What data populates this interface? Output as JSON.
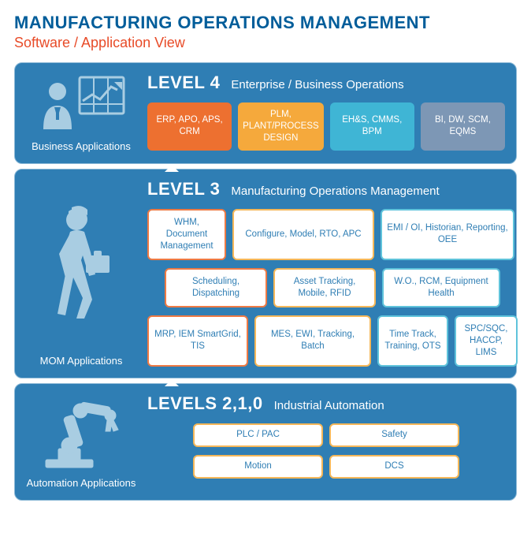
{
  "title": {
    "main": "MANUFACTURING OPERATIONS MANAGEMENT",
    "sub": "Software / Application View"
  },
  "colors": {
    "panel_bg": "#2f7eb4",
    "panel_border": "#8bb8d6",
    "title_main": "#005d9a",
    "title_sub": "#e84b28",
    "icon": "#a9cde2",
    "orange_solid": "#ed7030",
    "amber_solid": "#f5a93c",
    "cyan_solid": "#3fb5d5",
    "slate_solid": "#7d97b5",
    "outline_orange": "#ee7a44",
    "outline_amber": "#f5b759",
    "outline_cyan": "#5fc3db"
  },
  "panels": [
    {
      "side_label": "Business Applications",
      "level_name": "LEVEL 4",
      "level_desc": "Enterprise / Business Operations",
      "rows": [
        {
          "type": "solid",
          "boxes": [
            {
              "text": "ERP, APO, APS, CRM",
              "bg": "#ed7030"
            },
            {
              "text": "PLM, PLANT/PROCESS DESIGN",
              "bg": "#f5a93c"
            },
            {
              "text": "EH&S, CMMS, BPM",
              "bg": "#3fb5d5"
            },
            {
              "text": "BI, DW, SCM, EQMS",
              "bg": "#7d97b5"
            }
          ]
        }
      ]
    },
    {
      "side_label": "MOM Applications",
      "level_name": "LEVEL 3",
      "level_desc": "Manufacturing Operations Management",
      "rows": [
        {
          "type": "outlined",
          "boxes": [
            {
              "text": "WHM, Document Management",
              "border": "#ee7a44",
              "w": 100
            },
            {
              "text": "Configure, Model, RTO, APC",
              "border": "#f5b759",
              "w": 180
            },
            {
              "text": "EMI / OI, Historian, Reporting, OEE",
              "border": "#5fc3db",
              "w": 170
            }
          ]
        },
        {
          "type": "outlined",
          "center": true,
          "boxes": [
            {
              "text": "Scheduling, Dispatching",
              "border": "#ee7a44",
              "w": 130
            },
            {
              "text": "Asset Tracking, Mobile, RFID",
              "border": "#f5b759",
              "w": 130
            },
            {
              "text": "W.O., RCM, Equipment Health",
              "border": "#5fc3db",
              "w": 150
            }
          ]
        },
        {
          "type": "outlined",
          "boxes": [
            {
              "text": "MRP, IEM SmartGrid, TIS",
              "border": "#ee7a44",
              "w": 128
            },
            {
              "text": "MES, EWI, Tracking, Batch",
              "border": "#f5b759",
              "w": 148
            },
            {
              "text": "Time Track, Training, OTS",
              "border": "#5fc3db",
              "w": 90
            },
            {
              "text": "SPC/SQC, HACCP, LIMS",
              "border": "#5fc3db",
              "w": 80
            }
          ]
        }
      ]
    },
    {
      "side_label": "Automation Applications",
      "level_name": "LEVELS 2,1,0",
      "level_desc": "Industrial Automation",
      "rows": [
        {
          "type": "outlined",
          "center": true,
          "boxes": [
            {
              "text": "PLC / PAC",
              "border": "#f5b759",
              "w": 165,
              "h": 30
            },
            {
              "text": "Safety",
              "border": "#f5b759",
              "w": 165,
              "h": 30
            }
          ]
        },
        {
          "type": "outlined",
          "center": true,
          "boxes": [
            {
              "text": "Motion",
              "border": "#f5b759",
              "w": 165,
              "h": 30
            },
            {
              "text": "DCS",
              "border": "#f5b759",
              "w": 165,
              "h": 30
            }
          ]
        }
      ]
    }
  ]
}
